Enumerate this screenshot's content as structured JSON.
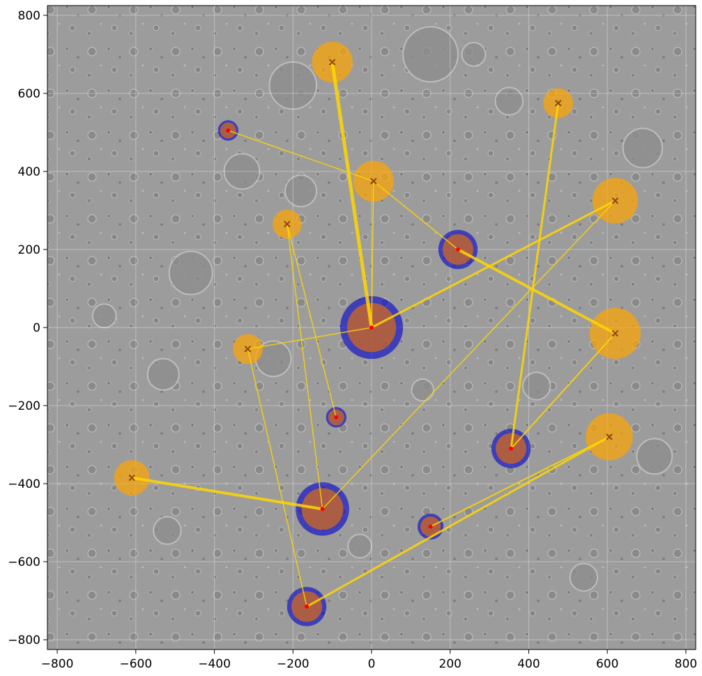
{
  "chart_data": {
    "type": "scatter",
    "title": "",
    "xlabel": "",
    "ylabel": "",
    "xlim": [
      -825,
      825
    ],
    "ylim": [
      -825,
      825
    ],
    "xticks": [
      -800,
      -600,
      -400,
      -200,
      0,
      200,
      400,
      600,
      800
    ],
    "yticks": [
      -800,
      -600,
      -400,
      -200,
      0,
      200,
      400,
      600,
      800
    ],
    "xtick_labels": [
      "−800",
      "−600",
      "−400",
      "−200",
      "0",
      "200",
      "400",
      "600",
      "800"
    ],
    "ytick_labels": [
      "−800",
      "−600",
      "−400",
      "−200",
      "0",
      "200",
      "400",
      "600",
      "800"
    ],
    "grid": true,
    "background": "grey lunar/martian crater terrain image",
    "colors": {
      "hub_fill": "#d2691e",
      "hub_ring": "#0000cd",
      "target_fill": "#ffa500",
      "link": "#ffd700",
      "hub_marker": "#ff0000",
      "target_marker": "#8b4513"
    },
    "hubs": [
      {
        "id": "h0",
        "x": 0,
        "y": 0,
        "r": 80
      },
      {
        "id": "h1",
        "x": -125,
        "y": -465,
        "r": 68
      },
      {
        "id": "h2",
        "x": 355,
        "y": -310,
        "r": 50
      },
      {
        "id": "h3",
        "x": 220,
        "y": 200,
        "r": 50
      },
      {
        "id": "h4",
        "x": -165,
        "y": -715,
        "r": 50
      },
      {
        "id": "h5",
        "x": 150,
        "y": -510,
        "r": 33
      },
      {
        "id": "h6",
        "x": -365,
        "y": 505,
        "r": 26
      },
      {
        "id": "h7",
        "x": -90,
        "y": -230,
        "r": 26
      }
    ],
    "targets": [
      {
        "id": "t0",
        "x": -100,
        "y": 680,
        "r": 52
      },
      {
        "id": "t1",
        "x": 475,
        "y": 575,
        "r": 38
      },
      {
        "id": "t2",
        "x": 5,
        "y": 375,
        "r": 52
      },
      {
        "id": "t3",
        "x": 620,
        "y": 325,
        "r": 58
      },
      {
        "id": "t4",
        "x": -215,
        "y": 265,
        "r": 37
      },
      {
        "id": "t5",
        "x": 620,
        "y": -15,
        "r": 65
      },
      {
        "id": "t6",
        "x": -315,
        "y": -55,
        "r": 38
      },
      {
        "id": "t7",
        "x": -610,
        "y": -385,
        "r": 45
      },
      {
        "id": "t8",
        "x": 605,
        "y": -280,
        "r": 60
      }
    ],
    "links": [
      {
        "from": "h0",
        "to": "t0",
        "width": 5
      },
      {
        "from": "h0",
        "to": "t2",
        "width": 1.5
      },
      {
        "from": "h0",
        "to": "t3",
        "width": 3
      },
      {
        "from": "h0",
        "to": "t6",
        "width": 1.5
      },
      {
        "from": "h6",
        "to": "t2",
        "width": 1.5
      },
      {
        "from": "h3",
        "to": "t2",
        "width": 1.5
      },
      {
        "from": "h3",
        "to": "t5",
        "width": 4
      },
      {
        "from": "h2",
        "to": "t1",
        "width": 3
      },
      {
        "from": "h2",
        "to": "t5",
        "width": 2
      },
      {
        "from": "h1",
        "to": "t3",
        "width": 1.5
      },
      {
        "from": "h1",
        "to": "t4",
        "width": 1.5
      },
      {
        "from": "h1",
        "to": "t7",
        "width": 4
      },
      {
        "from": "h7",
        "to": "t4",
        "width": 1.5
      },
      {
        "from": "h4",
        "to": "t6",
        "width": 1.5
      },
      {
        "from": "h4",
        "to": "t8",
        "width": 3
      },
      {
        "from": "h5",
        "to": "t8",
        "width": 2
      }
    ]
  }
}
